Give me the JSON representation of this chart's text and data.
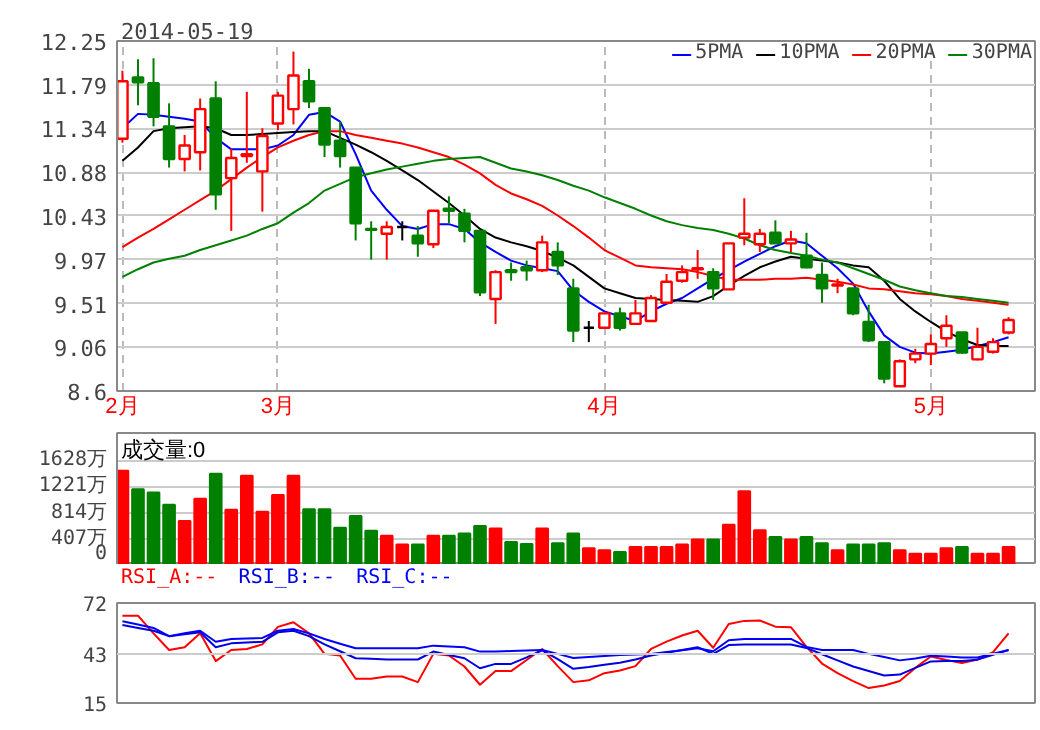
{
  "chart_data": [
    {
      "type": "candlestick",
      "title": "2014-05-19",
      "legend": "top right",
      "grid": true,
      "categories": [
        "2月",
        null,
        null,
        null,
        null,
        null,
        null,
        null,
        null,
        null,
        "3月",
        null,
        null,
        null,
        null,
        null,
        null,
        null,
        null,
        null,
        null,
        null,
        null,
        null,
        null,
        null,
        null,
        null,
        null,
        null,
        null,
        "4月",
        null,
        null,
        null,
        null,
        null,
        null,
        null,
        null,
        null,
        null,
        null,
        null,
        null,
        null,
        null,
        null,
        null,
        null,
        null,
        null,
        "5月",
        null,
        null,
        null,
        null,
        null
      ],
      "ohlc": [
        [
          11.23,
          11.94,
          11.19,
          11.83
        ],
        [
          11.87,
          12.06,
          11.58,
          11.82
        ],
        [
          11.81,
          12.07,
          11.36,
          11.46
        ],
        [
          11.36,
          11.6,
          10.93,
          11.02
        ],
        [
          11.02,
          11.27,
          10.89,
          11.16
        ],
        [
          11.09,
          11.65,
          10.9,
          11.54
        ],
        [
          11.65,
          11.83,
          10.49,
          10.65
        ],
        [
          10.82,
          11.13,
          10.27,
          11.03
        ],
        [
          11.05,
          11.72,
          10.98,
          11.07
        ],
        [
          10.89,
          11.34,
          10.47,
          11.26
        ],
        [
          11.39,
          11.72,
          11.32,
          11.68
        ],
        [
          11.54,
          12.14,
          11.38,
          11.89
        ],
        [
          11.83,
          11.96,
          11.55,
          11.62
        ],
        [
          11.55,
          11.55,
          11.04,
          11.17
        ],
        [
          11.21,
          11.41,
          10.93,
          11.05
        ],
        [
          10.93,
          10.93,
          10.17,
          10.35
        ],
        [
          10.29,
          10.37,
          9.97,
          10.28
        ],
        [
          10.24,
          10.37,
          9.97,
          10.31
        ],
        [
          10.31,
          10.37,
          10.17,
          10.31
        ],
        [
          10.22,
          10.32,
          10.0,
          10.14
        ],
        [
          10.13,
          10.48,
          10.09,
          10.48
        ],
        [
          10.5,
          10.63,
          10.35,
          10.48
        ],
        [
          10.45,
          10.5,
          10.15,
          10.27
        ],
        [
          10.27,
          10.27,
          9.59,
          9.63
        ],
        [
          9.56,
          9.86,
          9.3,
          9.84
        ],
        [
          9.86,
          9.94,
          9.75,
          9.84
        ],
        [
          9.89,
          9.96,
          9.75,
          9.86
        ],
        [
          9.86,
          10.22,
          9.84,
          10.15
        ],
        [
          10.05,
          10.15,
          9.81,
          9.91
        ],
        [
          9.67,
          9.77,
          9.11,
          9.23
        ],
        [
          9.26,
          9.33,
          9.11,
          9.26
        ],
        [
          9.26,
          9.41,
          9.26,
          9.41
        ],
        [
          9.41,
          9.47,
          9.23,
          9.26
        ],
        [
          9.3,
          9.55,
          9.3,
          9.41
        ],
        [
          9.33,
          9.6,
          9.32,
          9.57
        ],
        [
          9.52,
          9.82,
          9.52,
          9.74
        ],
        [
          9.75,
          9.91,
          9.73,
          9.84
        ],
        [
          9.87,
          10.07,
          9.77,
          9.88
        ],
        [
          9.84,
          9.88,
          9.55,
          9.67
        ],
        [
          9.66,
          10.14,
          9.66,
          10.14
        ],
        [
          10.2,
          10.61,
          10.12,
          10.24
        ],
        [
          10.13,
          10.29,
          10.05,
          10.24
        ],
        [
          10.25,
          10.38,
          10.14,
          10.14
        ],
        [
          10.14,
          10.27,
          10.05,
          10.18
        ],
        [
          10.01,
          10.25,
          9.88,
          9.89
        ],
        [
          9.81,
          9.94,
          9.52,
          9.67
        ],
        [
          9.7,
          9.77,
          9.62,
          9.71
        ],
        [
          9.67,
          9.67,
          9.39,
          9.41
        ],
        [
          9.32,
          9.5,
          9.11,
          9.13
        ],
        [
          9.11,
          9.11,
          8.68,
          8.73
        ],
        [
          8.65,
          8.93,
          8.64,
          8.91
        ],
        [
          8.93,
          9.04,
          8.89,
          8.99
        ],
        [
          8.99,
          9.19,
          8.87,
          9.09
        ],
        [
          9.15,
          9.39,
          9.06,
          9.28
        ],
        [
          9.21,
          9.21,
          8.99,
          9.0
        ],
        [
          8.93,
          9.26,
          8.92,
          9.06
        ],
        [
          9.01,
          9.15,
          8.99,
          9.11
        ],
        [
          9.21,
          9.37,
          9.19,
          9.34
        ]
      ],
      "series": [
        {
          "name": "5PMA",
          "type": "line",
          "color": "#0000ff",
          "values": [
            11.34,
            11.49,
            11.48,
            11.46,
            11.44,
            11.41,
            11.24,
            11.12,
            11.12,
            11.12,
            11.16,
            11.27,
            11.48,
            11.51,
            11.41,
            11.07,
            10.69,
            10.49,
            10.32,
            10.29,
            10.34,
            10.34,
            10.29,
            10.15,
            10.05,
            9.96,
            9.91,
            9.88,
            9.85,
            9.65,
            9.53,
            9.43,
            9.38,
            9.33,
            9.43,
            9.51,
            9.57,
            9.67,
            9.77,
            9.86,
            9.95,
            10.03,
            10.11,
            10.17,
            10.14,
            10.01,
            9.88,
            9.72,
            9.43,
            9.18,
            9.06,
            9.0,
            8.99,
            9.01,
            9.03,
            9.07,
            9.11,
            9.16
          ]
        },
        {
          "name": "10PMA",
          "type": "line",
          "color": "#000000",
          "values": [
            11.0,
            11.14,
            11.31,
            11.34,
            11.35,
            11.36,
            11.34,
            11.27,
            11.27,
            11.28,
            11.29,
            11.3,
            11.31,
            11.31,
            11.24,
            11.17,
            11.09,
            11.0,
            10.9,
            10.8,
            10.68,
            10.56,
            10.43,
            10.29,
            10.2,
            10.15,
            10.11,
            10.06,
            9.99,
            9.91,
            9.79,
            9.67,
            9.62,
            9.57,
            9.56,
            9.55,
            9.54,
            9.53,
            9.59,
            9.7,
            9.8,
            9.89,
            9.95,
            10.0,
            9.98,
            9.96,
            9.94,
            9.91,
            9.89,
            9.75,
            9.56,
            9.43,
            9.32,
            9.22,
            9.14,
            9.08,
            9.07,
            9.07
          ]
        },
        {
          "name": "20PMA",
          "type": "line",
          "color": "#ff0000",
          "values": [
            10.1,
            10.2,
            10.29,
            10.39,
            10.49,
            10.59,
            10.69,
            10.81,
            10.93,
            11.04,
            11.14,
            11.21,
            11.27,
            11.31,
            11.31,
            11.27,
            11.24,
            11.21,
            11.18,
            11.14,
            11.09,
            11.04,
            10.96,
            10.87,
            10.75,
            10.66,
            10.6,
            10.53,
            10.43,
            10.32,
            10.2,
            10.07,
            9.99,
            9.91,
            9.89,
            9.88,
            9.87,
            9.84,
            9.8,
            9.76,
            9.76,
            9.76,
            9.77,
            9.77,
            9.78,
            9.76,
            9.74,
            9.71,
            9.67,
            9.66,
            9.64,
            9.62,
            9.61,
            9.59,
            9.56,
            9.54,
            9.52,
            9.5
          ]
        },
        {
          "name": "30PMA",
          "type": "line",
          "color": "#008000",
          "values": [
            9.79,
            9.87,
            9.94,
            9.98,
            10.01,
            10.07,
            10.12,
            10.17,
            10.22,
            10.29,
            10.35,
            10.46,
            10.56,
            10.69,
            10.76,
            10.83,
            10.87,
            10.91,
            10.94,
            10.97,
            11.0,
            11.02,
            11.03,
            11.04,
            10.98,
            10.92,
            10.89,
            10.85,
            10.8,
            10.74,
            10.69,
            10.62,
            10.56,
            10.5,
            10.43,
            10.37,
            10.33,
            10.3,
            10.28,
            10.24,
            10.19,
            10.12,
            10.07,
            10.04,
            10.01,
            9.97,
            9.94,
            9.88,
            9.82,
            9.76,
            9.69,
            9.65,
            9.62,
            9.59,
            9.58,
            9.56,
            9.54,
            9.52
          ]
        }
      ],
      "ylim": [
        8.6,
        12.25
      ],
      "yticks": [
        12.25,
        11.79,
        11.34,
        10.88,
        10.43,
        9.97,
        9.51,
        9.06,
        8.6
      ]
    },
    {
      "type": "bar",
      "title": "成交量:0",
      "grid": "y",
      "tick_labels": "y",
      "categories": [
        null,
        null,
        null,
        null,
        null,
        null,
        null,
        null,
        null,
        null,
        null,
        null,
        null,
        null,
        null,
        null,
        null,
        null,
        null,
        null,
        null,
        null,
        null,
        null,
        null,
        null,
        null,
        null,
        null,
        null,
        null,
        null,
        null,
        null,
        null,
        null,
        null,
        null,
        null,
        null,
        null,
        null,
        null,
        null,
        null,
        null,
        null,
        null,
        null,
        null,
        null,
        null,
        null,
        null,
        null,
        null,
        null,
        null
      ],
      "values": [
        1464,
        1175,
        1127,
        934,
        684,
        1030,
        1416,
        857,
        1387,
        828,
        1088,
        1387,
        867,
        867,
        578,
        761,
        530,
        453,
        318,
        318,
        453,
        453,
        491,
        607,
        568,
        356,
        327,
        568,
        337,
        491,
        260,
        231,
        202,
        279,
        279,
        279,
        318,
        395,
        395,
        626,
        1146,
        539,
        433,
        395,
        433,
        337,
        231,
        318,
        318,
        337,
        231,
        173,
        173,
        260,
        279,
        173,
        173,
        279
      ],
      "colors": [
        "#ff0000",
        "#008000",
        "#008000",
        "#008000",
        "#ff0000",
        "#ff0000",
        "#008000",
        "#ff0000",
        "#ff0000",
        "#ff0000",
        "#ff0000",
        "#ff0000",
        "#008000",
        "#008000",
        "#008000",
        "#008000",
        "#008000",
        "#ff0000",
        "#ff0000",
        "#008000",
        "#ff0000",
        "#008000",
        "#008000",
        "#008000",
        "#ff0000",
        "#008000",
        "#008000",
        "#ff0000",
        "#008000",
        "#008000",
        "#ff0000",
        "#ff0000",
        "#008000",
        "#ff0000",
        "#ff0000",
        "#ff0000",
        "#ff0000",
        "#ff0000",
        "#008000",
        "#ff0000",
        "#ff0000",
        "#ff0000",
        "#008000",
        "#ff0000",
        "#008000",
        "#008000",
        "#ff0000",
        "#008000",
        "#008000",
        "#008000",
        "#ff0000",
        "#ff0000",
        "#ff0000",
        "#ff0000",
        "#008000",
        "#ff0000",
        "#ff0000",
        "#ff0000"
      ],
      "ylim": [
        0,
        2050
      ],
      "yticks": [
        {
          "value": 1628,
          "label": "1628万"
        },
        {
          "value": 1221,
          "label": "1221万"
        },
        {
          "value": 814,
          "label": "814万"
        },
        {
          "value": 407,
          "label": "407万"
        },
        0
      ]
    },
    {
      "type": "line",
      "tick_labels": "y",
      "ref_lines": [
        {
          "axis": "y",
          "value": 43,
          "color": "#cccccc"
        }
      ],
      "categories": [
        null,
        null,
        null,
        null,
        null,
        null,
        null,
        null,
        null,
        null,
        null,
        null,
        null,
        null,
        null,
        null,
        null,
        null,
        null,
        null,
        null,
        null,
        null,
        null,
        null,
        null,
        null,
        null,
        null,
        null,
        null,
        null,
        null,
        null,
        null,
        null,
        null,
        null,
        null,
        null,
        null,
        null,
        null,
        null,
        null,
        null,
        null,
        null,
        null,
        null,
        null,
        null,
        null,
        null,
        null,
        null,
        null,
        null
      ],
      "series": [
        {
          "name": "RSI_A:--",
          "color": "#ff0000",
          "values": [
            64.8,
            64.8,
            54.7,
            45.2,
            46.8,
            54.7,
            38.9,
            45.2,
            45.8,
            48.4,
            58.4,
            61.0,
            54.7,
            43.0,
            42.1,
            28.8,
            28.8,
            30.1,
            30.1,
            26.9,
            43.0,
            42.1,
            35.8,
            25.4,
            33.2,
            33.2,
            39.5,
            45.8,
            36.0,
            26.9,
            27.9,
            32.0,
            33.5,
            36.0,
            45.8,
            50.0,
            53.5,
            56.2,
            46.5,
            60.0,
            61.8,
            62.0,
            58.5,
            58.2,
            47.0,
            37.5,
            32.0,
            27.5,
            23.5,
            25.0,
            27.5,
            35.0,
            41.5,
            39.5,
            37.8,
            39.8,
            44.0,
            54.7
          ]
        },
        {
          "name": "RSI_B:--",
          "color": "#0000e0",
          "values": [
            59.4,
            57.8,
            56.2,
            53.1,
            54.2,
            55.3,
            46.8,
            49.0,
            49.5,
            49.9,
            55.3,
            56.2,
            53.1,
            48.4,
            44.5,
            40.5,
            40.2,
            39.8,
            39.8,
            39.8,
            44.3,
            42.4,
            40.5,
            34.8,
            37.3,
            37.3,
            41.0,
            45.0,
            40.0,
            34.5,
            35.5,
            36.8,
            38.0,
            39.8,
            42.1,
            43.7,
            45.2,
            46.8,
            43.0,
            48.0,
            48.4,
            48.4,
            48.4,
            48.4,
            46.4,
            42.8,
            39.3,
            35.8,
            33.2,
            30.7,
            31.2,
            35.0,
            38.7,
            38.9,
            38.9,
            39.7,
            42.5,
            45.2
          ]
        },
        {
          "name": "RSI_C:--",
          "color": "#0000ff",
          "values": [
            61.6,
            59.7,
            57.8,
            53.1,
            54.7,
            56.2,
            49.9,
            51.5,
            51.8,
            52.1,
            56.2,
            57.2,
            54.7,
            51.5,
            48.8,
            46.2,
            46.2,
            46.2,
            46.2,
            46.2,
            47.7,
            47.2,
            46.8,
            44.3,
            44.4,
            44.6,
            44.9,
            45.2,
            43.0,
            40.7,
            41.2,
            41.8,
            42.3,
            42.7,
            43.0,
            44.1,
            45.1,
            46.2,
            44.5,
            50.8,
            51.5,
            51.5,
            51.5,
            51.5,
            47.0,
            45.2,
            45.2,
            45.2,
            43.0,
            41.2,
            39.3,
            40.4,
            41.9,
            41.5,
            40.9,
            41.0,
            43.1,
            45.2
          ]
        }
      ],
      "ylim": [
        15,
        72
      ],
      "yticks": [
        72,
        43,
        15
      ]
    }
  ]
}
